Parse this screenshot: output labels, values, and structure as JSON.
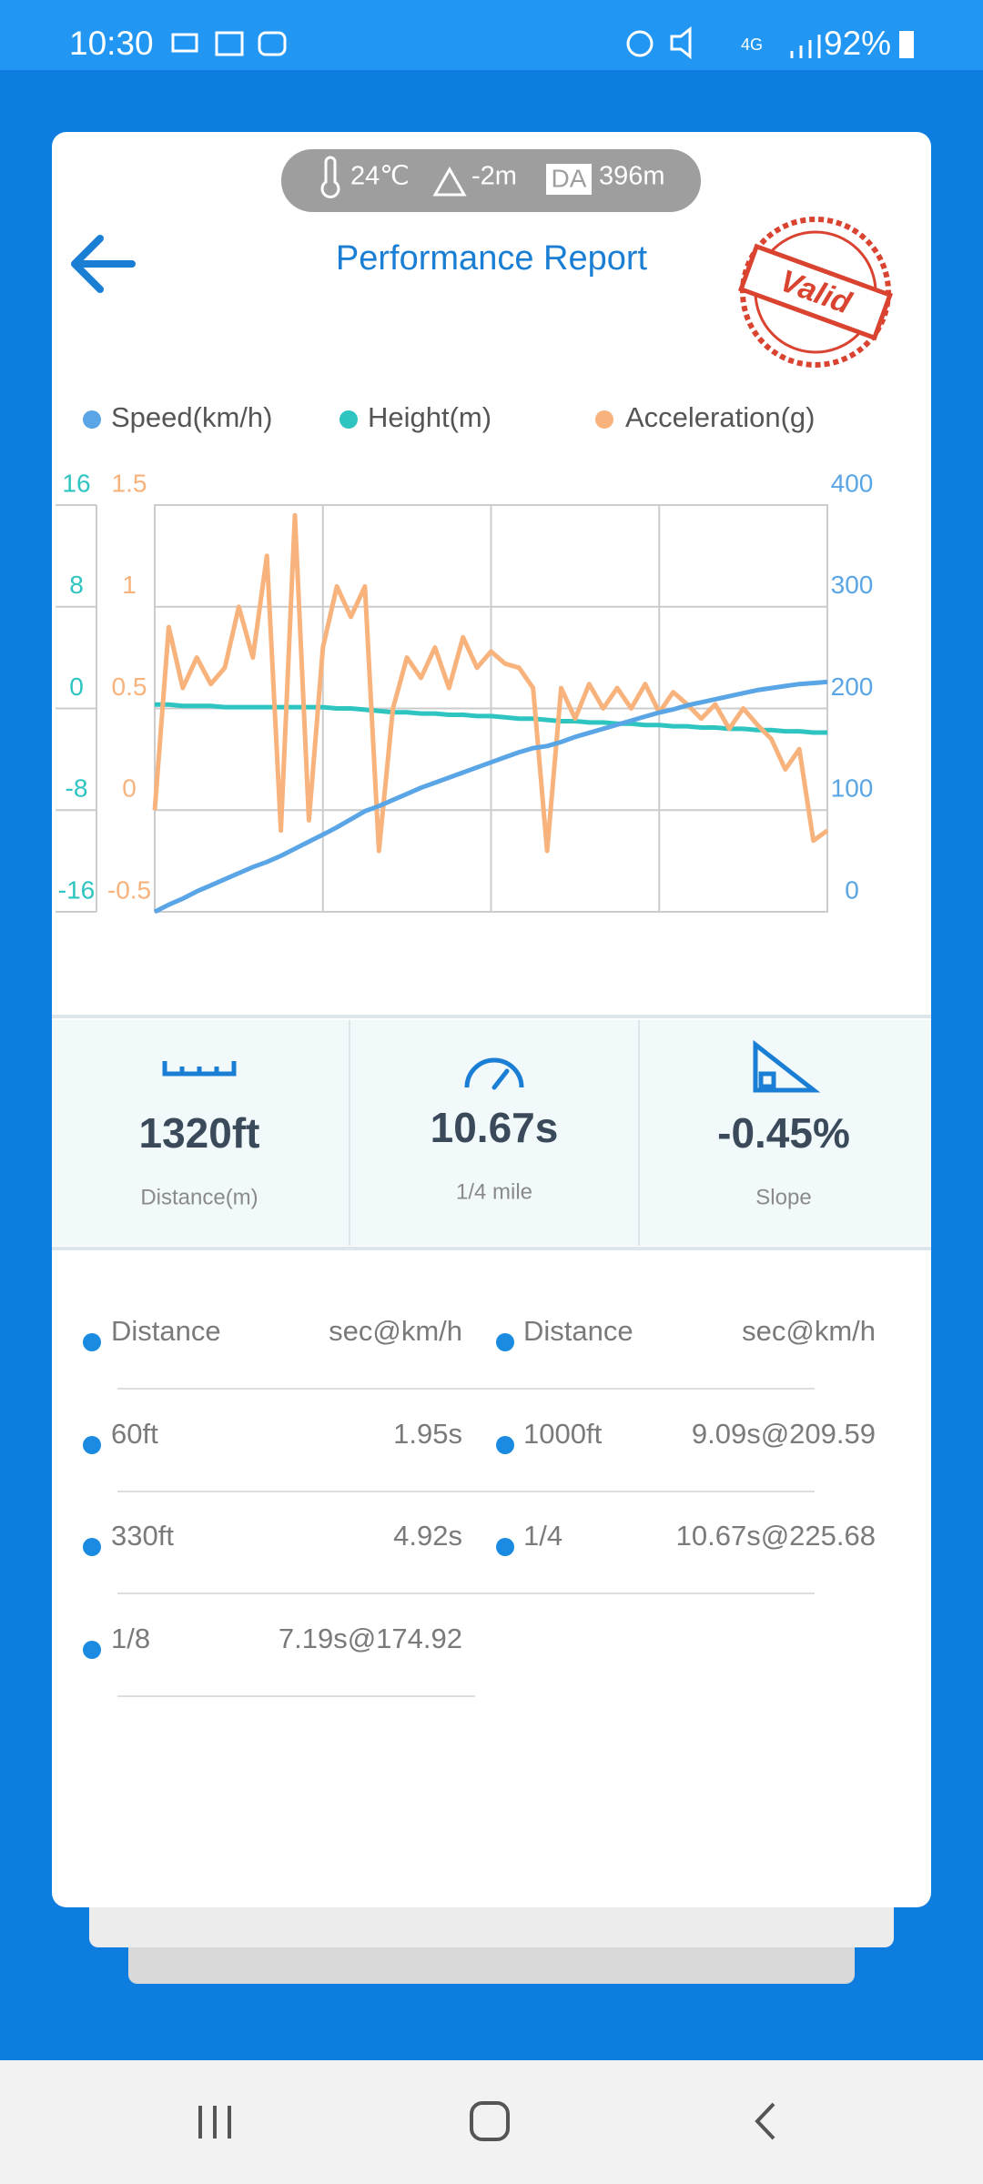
{
  "status_bar": {
    "time": "10:30",
    "network": "4G",
    "battery": "92%"
  },
  "weather": {
    "temperature": "24℃",
    "altitude": "-2m",
    "density_altitude_label": "DA",
    "density_altitude": "396m"
  },
  "header": {
    "title": "Performance Report",
    "stamp": "Valid"
  },
  "chart_data": {
    "type": "line",
    "grid": true,
    "ylim": [
      -16,
      16
    ],
    "yticks": [
      16,
      8,
      0,
      -8,
      -16
    ],
    "y2lim": [
      0,
      400
    ],
    "y2ticks": [
      400,
      300,
      200,
      100,
      0
    ],
    "y3lim": [
      -0.5,
      1.5
    ],
    "y3ticks": [
      1.5,
      1,
      0.5,
      0,
      -0.5
    ],
    "series": [
      {
        "name": "Speed(km/h)",
        "color": "#5aa5e6",
        "axis": "y2",
        "values": [
          0,
          7,
          13,
          20,
          26,
          32,
          38,
          44,
          49,
          55,
          62,
          69,
          76,
          83,
          91,
          99,
          104,
          110,
          116,
          122,
          127,
          132,
          137,
          142,
          147,
          152,
          157,
          161,
          163,
          167,
          172,
          176,
          180,
          184,
          188,
          192,
          196,
          199,
          203,
          206,
          209,
          212,
          215,
          218,
          220,
          222,
          224,
          225,
          226
        ]
      },
      {
        "name": "Height(m)",
        "color": "#2ec4c0",
        "axis": "y",
        "values": [
          0.3,
          0.3,
          0.2,
          0.2,
          0.2,
          0.1,
          0.1,
          0.1,
          0.1,
          0.1,
          0.1,
          0.1,
          0.1,
          0,
          0,
          -0.1,
          -0.2,
          -0.3,
          -0.3,
          -0.4,
          -0.4,
          -0.5,
          -0.5,
          -0.6,
          -0.6,
          -0.7,
          -0.8,
          -0.8,
          -0.9,
          -1,
          -1,
          -1.1,
          -1.1,
          -1.2,
          -1.2,
          -1.3,
          -1.3,
          -1.4,
          -1.4,
          -1.5,
          -1.5,
          -1.6,
          -1.6,
          -1.7,
          -1.7,
          -1.8,
          -1.8,
          -1.9,
          -1.9
        ]
      },
      {
        "name": "Acceleration(g)",
        "color": "#f8b27c",
        "axis": "y3",
        "values": [
          0,
          0.9,
          0.6,
          0.75,
          0.62,
          0.7,
          1.0,
          0.75,
          1.25,
          -0.1,
          1.45,
          -0.05,
          0.8,
          1.1,
          0.95,
          1.1,
          -0.2,
          0.5,
          0.75,
          0.65,
          0.8,
          0.6,
          0.85,
          0.7,
          0.78,
          0.72,
          0.7,
          0.6,
          -0.2,
          0.6,
          0.45,
          0.62,
          0.5,
          0.6,
          0.5,
          0.62,
          0.48,
          0.58,
          0.52,
          0.45,
          0.52,
          0.4,
          0.5,
          0.42,
          0.35,
          0.2,
          0.3,
          -0.15,
          -0.1
        ]
      }
    ]
  },
  "stats": [
    {
      "value": "1320ft",
      "label": "Distance(m)"
    },
    {
      "value": "10.67s",
      "label": "1/4 mile"
    },
    {
      "value": "-0.45%",
      "label": "Slope"
    }
  ],
  "table": {
    "left": [
      [
        "Distance",
        "sec@km/h"
      ],
      [
        "60ft",
        "1.95s"
      ],
      [
        "330ft",
        "4.92s"
      ],
      [
        "1/8",
        "7.19s@174.92"
      ]
    ],
    "right": [
      [
        "Distance",
        "sec@km/h"
      ],
      [
        "1000ft",
        "9.09s@209.59"
      ],
      [
        "1/4",
        "10.67s@225.68"
      ]
    ]
  }
}
